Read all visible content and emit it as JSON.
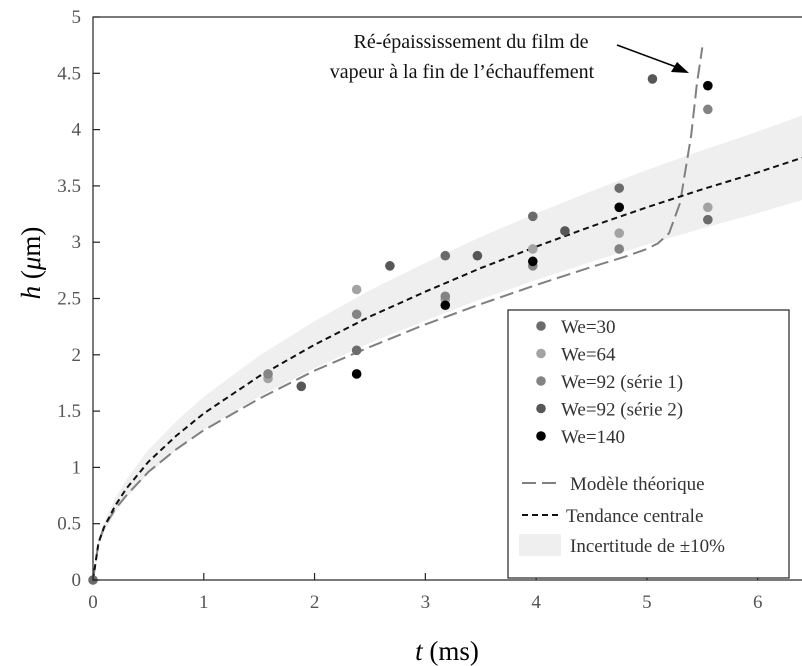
{
  "chart_data": {
    "type": "scatter",
    "xlabel": {
      "var": "t",
      "unit": " (ms)"
    },
    "ylabel": {
      "var": "h",
      "unit_open": " (",
      "unit_mu": "μ",
      "unit_close": "m)"
    },
    "xlim": [
      0,
      6.4
    ],
    "ylim": [
      0,
      5
    ],
    "xticks": [
      0,
      1,
      2,
      3,
      4,
      5,
      6
    ],
    "yticks": [
      0,
      0.5,
      1,
      1.5,
      2,
      2.5,
      3,
      3.5,
      4,
      4.5,
      5
    ],
    "ytick_labels": [
      "0",
      "0.5",
      "1",
      "1.5",
      "2",
      "2.5",
      "3",
      "3.5",
      "4",
      "4.5",
      "5"
    ],
    "grid": false,
    "legend_position": "lower-right",
    "series": [
      {
        "name": "We=30",
        "color": "#6b6b6b",
        "points": [
          [
            0,
            0
          ],
          [
            2.38,
            2.04
          ],
          [
            3.18,
            2.88
          ],
          [
            3.97,
            3.23
          ],
          [
            4.75,
            3.48
          ],
          [
            5.55,
            3.2
          ]
        ]
      },
      {
        "name": "We=64",
        "color": "#a3a3a3",
        "points": [
          [
            1.58,
            1.79
          ],
          [
            2.38,
            2.58
          ],
          [
            3.18,
            2.49
          ],
          [
            3.97,
            2.94
          ],
          [
            4.75,
            3.08
          ],
          [
            5.55,
            3.31
          ]
        ]
      },
      {
        "name": "We=92 (série 1)",
        "color": "#838383",
        "points": [
          [
            1.58,
            1.83
          ],
          [
            2.38,
            2.36
          ],
          [
            3.18,
            2.52
          ],
          [
            3.97,
            2.79
          ],
          [
            4.75,
            2.94
          ],
          [
            5.55,
            4.18
          ]
        ]
      },
      {
        "name": "We=92 (série 2)",
        "color": "#575757",
        "points": [
          [
            1.88,
            1.72
          ],
          [
            2.68,
            2.79
          ],
          [
            3.47,
            2.88
          ],
          [
            4.26,
            3.1
          ],
          [
            5.05,
            4.45
          ]
        ]
      },
      {
        "name": "We=140",
        "color": "#000000",
        "points": [
          [
            2.38,
            1.83
          ],
          [
            3.18,
            2.44
          ],
          [
            3.97,
            2.83
          ],
          [
            4.75,
            3.31
          ],
          [
            5.55,
            4.39
          ]
        ]
      }
    ],
    "curves": {
      "theoretical": {
        "name": "Modèle théorique",
        "color": "#808080",
        "points": [
          [
            0,
            0
          ],
          [
            0.05,
            0.33
          ],
          [
            0.1,
            0.47
          ],
          [
            0.2,
            0.63
          ],
          [
            0.3,
            0.75
          ],
          [
            0.5,
            0.96
          ],
          [
            0.75,
            1.16
          ],
          [
            1.0,
            1.33
          ],
          [
            1.5,
            1.61
          ],
          [
            2.0,
            1.86
          ],
          [
            2.5,
            2.07
          ],
          [
            3.0,
            2.27
          ],
          [
            3.5,
            2.45
          ],
          [
            4.0,
            2.62
          ],
          [
            4.5,
            2.78
          ],
          [
            4.8,
            2.87
          ],
          [
            5.0,
            2.94
          ],
          [
            5.1,
            2.99
          ],
          [
            5.2,
            3.08
          ],
          [
            5.3,
            3.35
          ],
          [
            5.4,
            3.95
          ],
          [
            5.45,
            4.4
          ],
          [
            5.5,
            4.73
          ]
        ]
      },
      "central_trend": {
        "name": "Tendance centrale",
        "color": "#111111",
        "points": [
          [
            0,
            0
          ],
          [
            0.05,
            0.33
          ],
          [
            0.1,
            0.47
          ],
          [
            0.2,
            0.66
          ],
          [
            0.3,
            0.81
          ],
          [
            0.5,
            1.05
          ],
          [
            0.75,
            1.28
          ],
          [
            1.0,
            1.48
          ],
          [
            1.5,
            1.81
          ],
          [
            2.0,
            2.09
          ],
          [
            2.5,
            2.34
          ],
          [
            3.0,
            2.56
          ],
          [
            3.5,
            2.77
          ],
          [
            4.0,
            2.96
          ],
          [
            4.5,
            3.14
          ],
          [
            5.0,
            3.31
          ],
          [
            5.5,
            3.47
          ],
          [
            6.0,
            3.62
          ],
          [
            6.4,
            3.75
          ]
        ]
      },
      "uncertainty": {
        "name": "Incertitude de ±10%",
        "color": "#efefef",
        "fraction": 0.1
      }
    },
    "annotation": {
      "line1": "Ré-épaississement du film de",
      "line2": "vapeur à la fin de l’échauffement",
      "points_to": [
        5.46,
        4.45
      ]
    }
  }
}
